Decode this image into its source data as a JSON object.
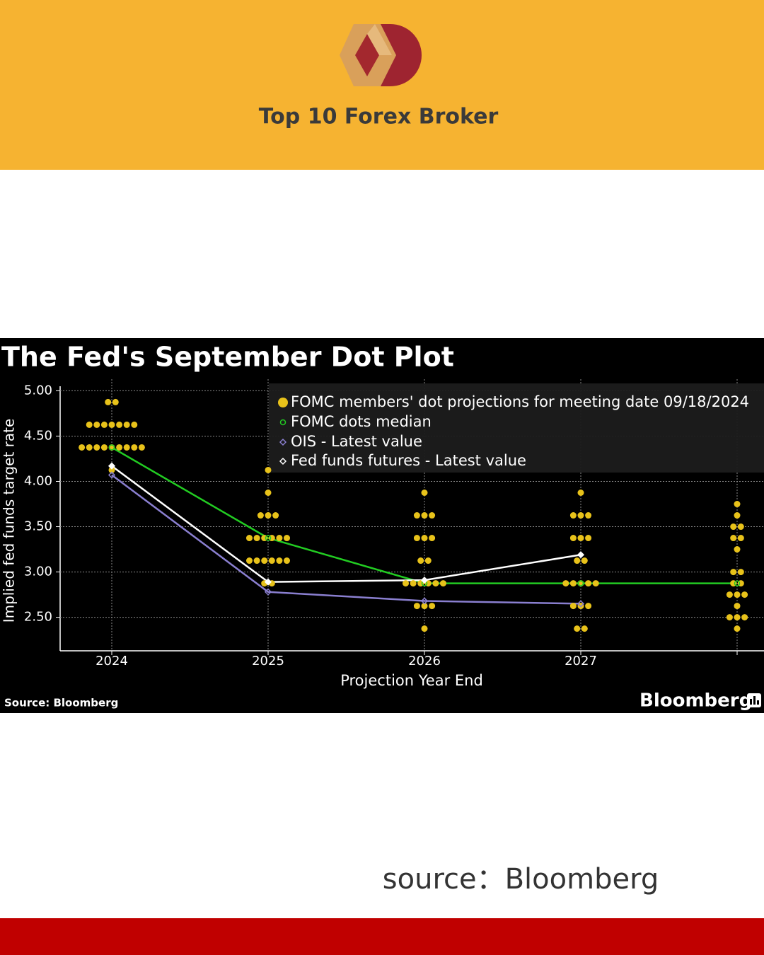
{
  "header": {
    "title": "Top 10 Forex Broker"
  },
  "chart_data": {
    "type": "dotplot",
    "title": "The Fed's September Dot Plot",
    "ylabel": "Implied fed funds target rate",
    "xlabel": "Projection Year End",
    "source": "Source: Bloomberg",
    "brand": "Bloomberg",
    "categories": [
      "2024",
      "2025",
      "2026",
      "2027",
      null
    ],
    "ylim": [
      2.13,
      5.05
    ],
    "yticks": [
      {
        "value": 2.5,
        "label": "2.50"
      },
      {
        "value": 3,
        "label": "3.00"
      },
      {
        "value": 3.5,
        "label": "3.50"
      },
      {
        "value": 4,
        "label": "4.00"
      },
      {
        "value": 4.5,
        "label": "4.50"
      },
      {
        "value": 5,
        "label": "5.00"
      }
    ],
    "grid": true,
    "dots": {
      "name": "FOMC members' dot projections for meeting date 09/18/2024",
      "color": "#e8c21a",
      "values": [
        [
          {
            "rate": 4.875,
            "count": 2
          },
          {
            "rate": 4.625,
            "count": 7
          },
          {
            "rate": 4.375,
            "count": 9
          },
          {
            "rate": 4.125,
            "count": 1
          }
        ],
        [
          {
            "rate": 4.125,
            "count": 1
          },
          {
            "rate": 3.875,
            "count": 1
          },
          {
            "rate": 3.625,
            "count": 3
          },
          {
            "rate": 3.375,
            "count": 6
          },
          {
            "rate": 3.125,
            "count": 6
          },
          {
            "rate": 2.875,
            "count": 2
          }
        ],
        [
          {
            "rate": 3.875,
            "count": 1
          },
          {
            "rate": 3.625,
            "count": 3
          },
          {
            "rate": 3.375,
            "count": 3
          },
          {
            "rate": 3.125,
            "count": 2
          },
          {
            "rate": 2.875,
            "count": 6
          },
          {
            "rate": 2.625,
            "count": 3
          },
          {
            "rate": 2.375,
            "count": 1
          }
        ],
        [
          {
            "rate": 3.875,
            "count": 1
          },
          {
            "rate": 3.625,
            "count": 3
          },
          {
            "rate": 3.375,
            "count": 3
          },
          {
            "rate": 3.125,
            "count": 2
          },
          {
            "rate": 2.875,
            "count": 5
          },
          {
            "rate": 2.625,
            "count": 3
          },
          {
            "rate": 2.375,
            "count": 2
          }
        ],
        [
          {
            "rate": 3.75,
            "count": 1
          },
          {
            "rate": 3.625,
            "count": 1
          },
          {
            "rate": 3.5,
            "count": 2
          },
          {
            "rate": 3.375,
            "count": 2
          },
          {
            "rate": 3.25,
            "count": 1
          },
          {
            "rate": 3.0,
            "count": 2
          },
          {
            "rate": 2.875,
            "count": 2
          },
          {
            "rate": 2.75,
            "count": 3
          },
          {
            "rate": 2.625,
            "count": 1
          },
          {
            "rate": 2.5,
            "count": 3
          },
          {
            "rate": 2.375,
            "count": 1
          }
        ]
      ]
    },
    "series": [
      {
        "name": "FOMC dots median",
        "color": "#22cc22",
        "values": [
          4.375,
          3.375,
          2.875,
          2.875,
          2.875
        ]
      },
      {
        "name": "OIS - Latest value",
        "color": "#8a7fd0",
        "values": [
          4.07,
          2.78,
          2.68,
          2.65,
          null
        ]
      },
      {
        "name": "Fed funds futures - Latest value",
        "color": "#ffffff",
        "values": [
          4.17,
          2.89,
          2.91,
          3.19,
          null
        ]
      }
    ]
  },
  "caption": "source：Bloomberg"
}
